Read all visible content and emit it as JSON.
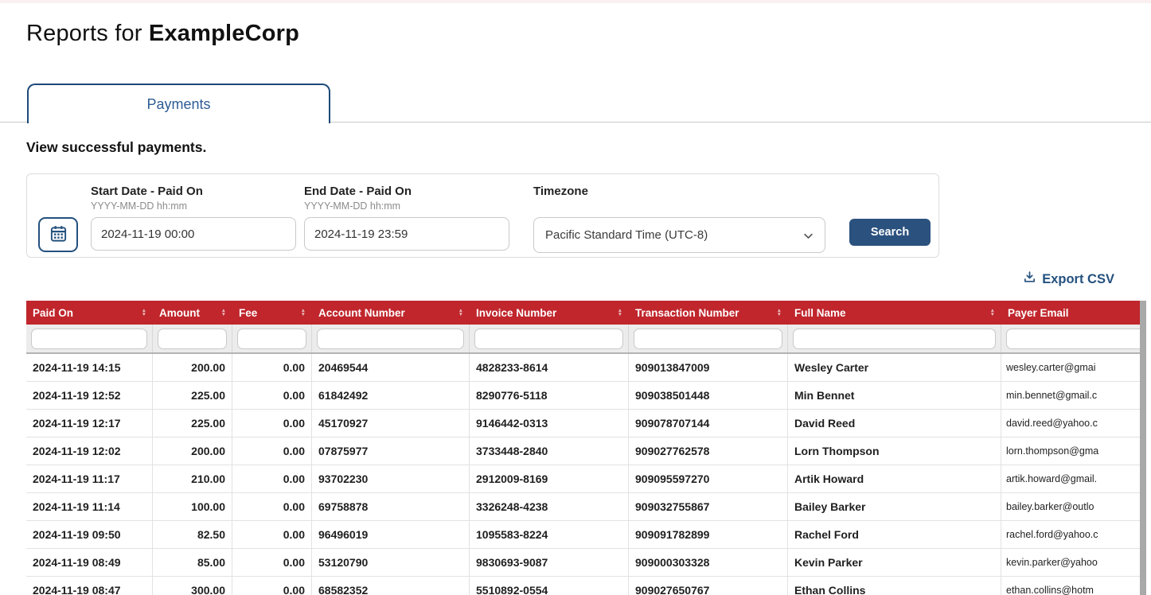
{
  "header": {
    "title_prefix": "Reports for ",
    "title_company": "ExampleCorp"
  },
  "tab": {
    "label": "Payments"
  },
  "subtitle": "View successful payments.",
  "filter_panel": {
    "start_date": {
      "label": "Start Date - Paid On",
      "hint": "YYYY-MM-DD hh:mm",
      "value": "2024-11-19 00:00"
    },
    "end_date": {
      "label": "End Date - Paid On",
      "hint": "YYYY-MM-DD hh:mm",
      "value": "2024-11-19 23:59"
    },
    "timezone": {
      "label": "Timezone",
      "selected_option": "Pacific Standard Time (UTC-8)"
    },
    "search_button": "Search"
  },
  "export_csv": {
    "label": "Export CSV",
    "icon": "download-icon"
  },
  "table": {
    "columns": [
      "Paid On",
      "Amount",
      "Fee",
      "Account Number",
      "Invoice Number",
      "Transaction Number",
      "Full Name",
      "Payer Email"
    ],
    "rows": [
      [
        "2024-11-19 14:15",
        "200.00",
        "0.00",
        "20469544",
        "4828233-8614",
        "909013847009",
        "Wesley Carter",
        "wesley.carter@gmai"
      ],
      [
        "2024-11-19 12:52",
        "225.00",
        "0.00",
        "61842492",
        "8290776-5118",
        "909038501448",
        "Min Bennet",
        "min.bennet@gmail.c"
      ],
      [
        "2024-11-19 12:17",
        "225.00",
        "0.00",
        "45170927",
        "9146442-0313",
        "909078707144",
        "David Reed",
        "david.reed@yahoo.c"
      ],
      [
        "2024-11-19 12:02",
        "200.00",
        "0.00",
        "07875977",
        "3733448-2840",
        "909027762578",
        "Lorn Thompson",
        "lorn.thompson@gma"
      ],
      [
        "2024-11-19 11:17",
        "210.00",
        "0.00",
        "93702230",
        "2912009-8169",
        "909095597270",
        "Artik Howard",
        "artik.howard@gmail."
      ],
      [
        "2024-11-19 11:14",
        "100.00",
        "0.00",
        "69758878",
        "3326248-4238",
        "909032755867",
        "Bailey Barker",
        "bailey.barker@outlo"
      ],
      [
        "2024-11-19 09:50",
        "82.50",
        "0.00",
        "96496019",
        "1095583-8224",
        "909091782899",
        "Rachel Ford",
        "rachel.ford@yahoo.c"
      ],
      [
        "2024-11-19 08:49",
        "85.00",
        "0.00",
        "53120790",
        "9830693-9087",
        "909000303328",
        "Kevin Parker",
        "kevin.parker@yahoo"
      ],
      [
        "2024-11-19 08:47",
        "300.00",
        "0.00",
        "68582352",
        "5510892-0554",
        "909027650767",
        "Ethan Collins",
        "ethan.collins@hotm"
      ]
    ]
  },
  "colors": {
    "table_header_bg": "#c0262c",
    "accent_navy": "#24517e",
    "tab_border": "#1d4a79",
    "tab_text": "#2d5c94",
    "search_button_bg": "#2b517e"
  }
}
